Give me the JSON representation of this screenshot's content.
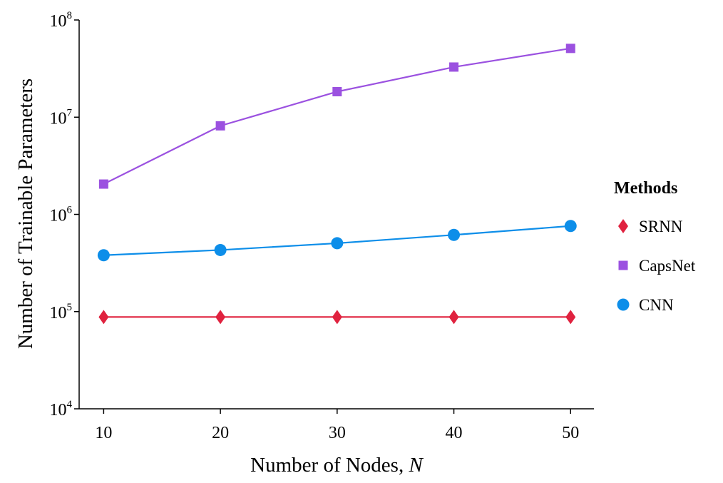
{
  "chart_data": {
    "type": "line",
    "xlabel": "Number of Nodes, ",
    "xlabel_var": "N",
    "ylabel": "Number of Trainable Parameters",
    "x": [
      10,
      20,
      30,
      40,
      50
    ],
    "xlim": [
      7.9,
      52
    ],
    "xticks": [
      "10",
      "20",
      "30",
      "40",
      "50"
    ],
    "yscale": "log",
    "ylim": [
      10000,
      100000000
    ],
    "yticks": [
      {
        "base": "10",
        "exp": "4"
      },
      {
        "base": "10",
        "exp": "5"
      },
      {
        "base": "10",
        "exp": "6"
      },
      {
        "base": "10",
        "exp": "7"
      },
      {
        "base": "10",
        "exp": "8"
      }
    ],
    "grid": false,
    "legend": {
      "title": "Methods",
      "placement": "right"
    },
    "series": [
      {
        "name": "SRNN",
        "marker": "diamond",
        "color": "#e0223f",
        "values": [
          88000,
          88000,
          88000,
          88000,
          88000
        ]
      },
      {
        "name": "CapsNet",
        "marker": "square",
        "color": "#9b51e0",
        "values": [
          2050000,
          8150000,
          18300000,
          32800000,
          51000000
        ]
      },
      {
        "name": "CNN",
        "marker": "circle",
        "color": "#0d8ee9",
        "values": [
          380000,
          430000,
          505000,
          615000,
          760000
        ]
      }
    ]
  }
}
